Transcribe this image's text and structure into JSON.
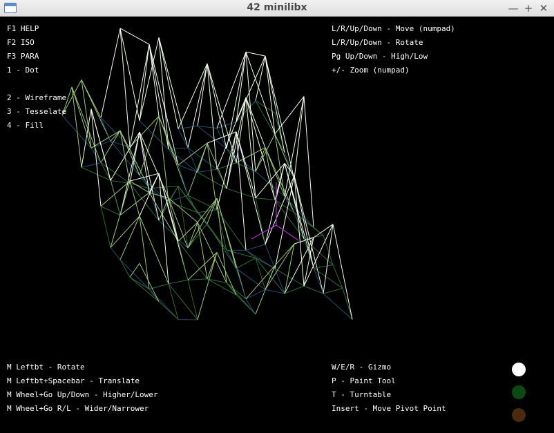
{
  "window": {
    "title": "42 minilibx",
    "minimize_glyph": "—",
    "maximize_glyph": "+",
    "close_glyph": "✕"
  },
  "help": {
    "views": [
      "F1 HELP",
      "F2 ISO",
      "F3 PARA",
      "1 - Dot"
    ],
    "render_modes": [
      "2 - Wireframe",
      "3 - Tesselate",
      "4 - Fill"
    ],
    "keyboard": [
      "L/R/Up/Down - Move (numpad)",
      "L/R/Up/Down - Rotate",
      "Pg Up/Down - High/Low",
      "+/- Zoom (numpad)"
    ],
    "mouse": [
      "M Leftbt - Rotate",
      "M Leftbt+Spacebar - Translate",
      "M Wheel+Go Up/Down - Higher/Lower",
      "M Wheel+Go R/L - Wider/Narrower"
    ],
    "tools": [
      "W/E/R - Gizmo",
      "P - Paint Tool",
      "T - Turntable",
      "Insert - Move Pivot Point"
    ]
  },
  "palette": [
    {
      "name": "white",
      "color": "#ffffff"
    },
    {
      "name": "green",
      "color": "#0b4a12"
    },
    {
      "name": "brown",
      "color": "#4a2a0c"
    }
  ],
  "mesh_colors": {
    "peak": "#f4fff0",
    "mid": "#9ec878",
    "low": "#2f6a3a",
    "deep": "#1f4e72",
    "gizmo": "#b030d0"
  }
}
